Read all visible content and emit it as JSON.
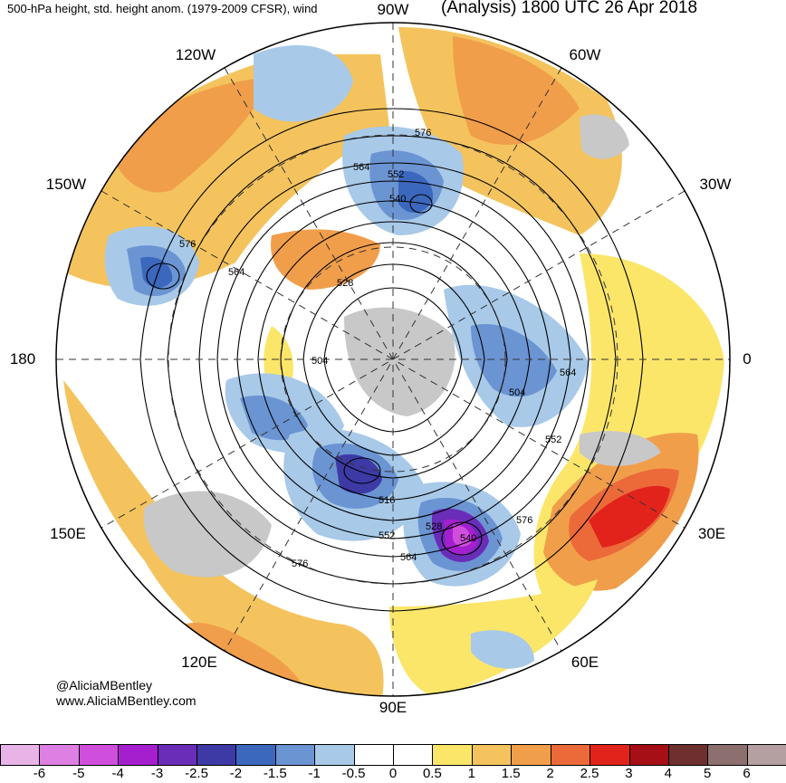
{
  "header": {
    "left_title": "500-hPa height, std. height anom. (1979-2009 CFSR), wind",
    "right_title": "(Analysis) 1800 UTC 26 Apr 2018"
  },
  "longitude_labels": [
    "90W",
    "60W",
    "30W",
    "0",
    "30E",
    "60E",
    "90E",
    "120E",
    "150E",
    "180",
    "150W",
    "120W"
  ],
  "contour_labels": [
    "576",
    "564",
    "552",
    "540",
    "576",
    "564",
    "528",
    "504",
    "564",
    "504",
    "552",
    "516",
    "528",
    "540",
    "552",
    "564",
    "576",
    "576"
  ],
  "credit": {
    "line1": "@AliciaMBentley",
    "line2": "www.AliciaMBentley.com"
  },
  "colorbar": {
    "ticks": [
      "-6",
      "-5",
      "-4",
      "-3",
      "-2.5",
      "-2",
      "-1.5",
      "-1",
      "-0.5",
      "0",
      "0.5",
      "1",
      "1.5",
      "2",
      "2.5",
      "3",
      "4",
      "5",
      "6"
    ],
    "colors": [
      "#e8b4e8",
      "#de7fe3",
      "#cf4fdc",
      "#a51fcf",
      "#6a2db8",
      "#3d3aa6",
      "#3b67bd",
      "#6b94d3",
      "#a8c9e8",
      "#ffffff",
      "#ffffff",
      "#fbe66a",
      "#f4c35d",
      "#f19e4b",
      "#ec6a3a",
      "#e2231c",
      "#a50f15",
      "#6e2f2f",
      "#8c6f6f",
      "#b4a0a0"
    ]
  }
}
